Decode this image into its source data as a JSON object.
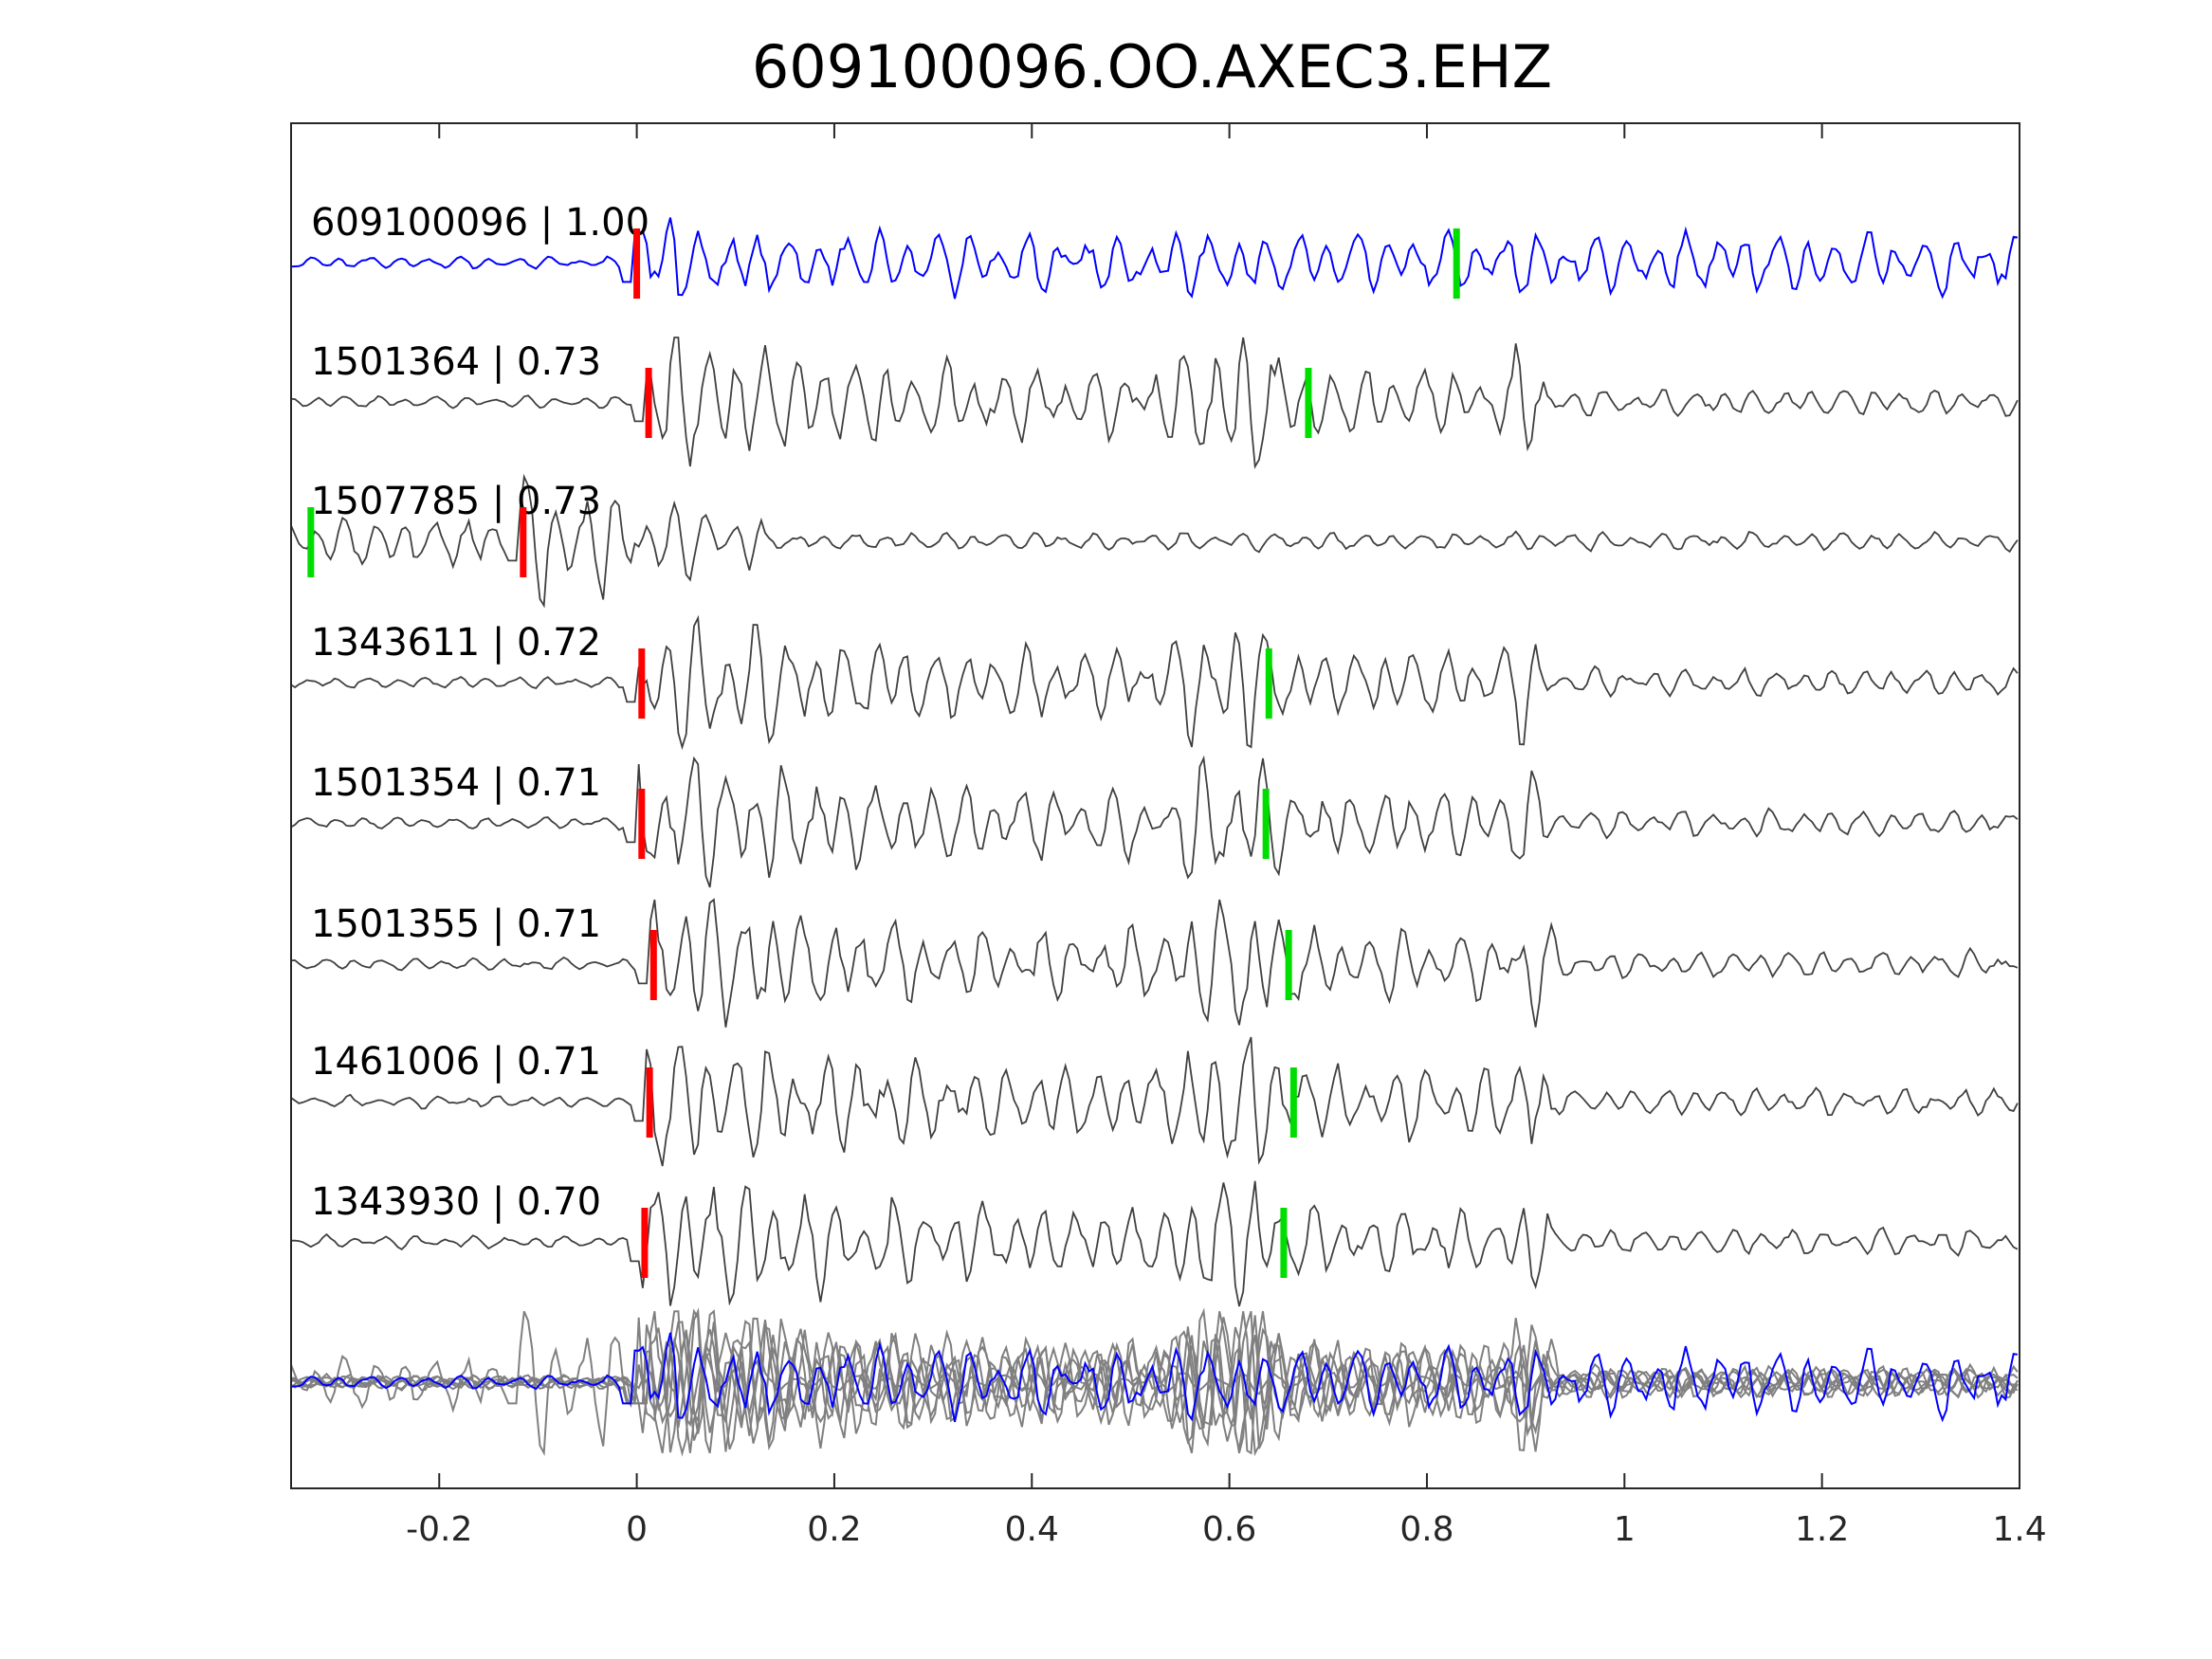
{
  "chart_data": {
    "type": "line",
    "title": "609100096.OO.AXEC3.EHZ",
    "xlabel": "",
    "ylabel": "",
    "xlim": [
      -0.35,
      1.4
    ],
    "xticks": [
      -0.2,
      0,
      0.2,
      0.4,
      0.6,
      0.8,
      1,
      1.2,
      1.4
    ],
    "xtick_labels": [
      "-0.2",
      "0",
      "0.2",
      "0.4",
      "0.6",
      "0.8",
      "1",
      "1.2",
      "1.4"
    ],
    "grid": false,
    "traces": [
      {
        "label": "609100096 | 1.00",
        "id": "609100096",
        "cc": 1.0,
        "p_pick": 0.0,
        "s_pick": 0.83,
        "color": "#0000ff"
      },
      {
        "label": "1501364 | 0.73",
        "id": "1501364",
        "cc": 0.73,
        "p_pick": 0.012,
        "s_pick": 0.68,
        "color": "#404040"
      },
      {
        "label": "1507785 | 0.73",
        "id": "1507785",
        "cc": 0.73,
        "p_pick": -0.115,
        "s_pick": -0.33,
        "color": "#404040"
      },
      {
        "label": "1343611 | 0.72",
        "id": "1343611",
        "cc": 0.72,
        "p_pick": 0.005,
        "s_pick": 0.64,
        "color": "#404040"
      },
      {
        "label": "1501354 | 0.71",
        "id": "1501354",
        "cc": 0.71,
        "p_pick": 0.005,
        "s_pick": 0.637,
        "color": "#404040"
      },
      {
        "label": "1501355 | 0.71",
        "id": "1501355",
        "cc": 0.71,
        "p_pick": 0.017,
        "s_pick": 0.66,
        "color": "#404040"
      },
      {
        "label": "1461006 | 0.71",
        "id": "1461006",
        "cc": 0.71,
        "p_pick": 0.013,
        "s_pick": 0.665,
        "color": "#404040"
      },
      {
        "label": "1343930 | 0.70",
        "id": "1343930",
        "cc": 0.7,
        "p_pick": 0.008,
        "s_pick": 0.655,
        "color": "#404040"
      }
    ],
    "stack": {
      "template_color": "#0000ff",
      "match_color": "#808080"
    },
    "p_pick_color": "#ff0000",
    "s_pick_color": "#00dd00"
  }
}
